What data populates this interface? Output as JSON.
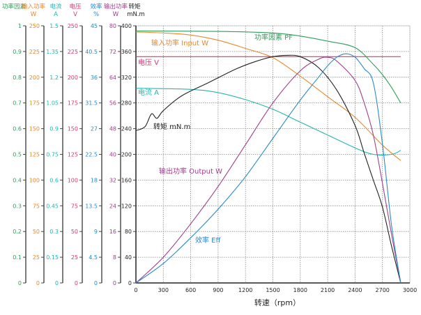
{
  "chart_data": {
    "type": "line",
    "xlabel": "转速（rpm）",
    "xlim": [
      0,
      3000
    ],
    "xticks": [
      "0",
      "300",
      "600",
      "900",
      "1200",
      "1500",
      "1800",
      "2100",
      "2400",
      "2700",
      "3000"
    ],
    "grid": true,
    "axes": [
      {
        "key": "pf",
        "title": "功率因素",
        "unit": "",
        "range": [
          0,
          1
        ],
        "color": "#2e9e5a",
        "ticks": [
          "0",
          "0.1",
          "0.2",
          "0.3",
          "0.4",
          "0.5",
          "0.6",
          "0.7",
          "0.8",
          "0.9",
          "1"
        ]
      },
      {
        "key": "input",
        "title": "输入功率",
        "unit": "W",
        "range": [
          0,
          250
        ],
        "color": "#e8892c",
        "ticks": [
          "0",
          "25",
          "50",
          "75",
          "100",
          "125",
          "150",
          "175",
          "200",
          "225",
          "250"
        ]
      },
      {
        "key": "current",
        "title": "电流",
        "unit": "A",
        "range": [
          0,
          1.5
        ],
        "color": "#26b5b0",
        "ticks": [
          "0",
          "0.15",
          "0.3",
          "0.45",
          "0.6",
          "0.75",
          "0.9",
          "1.05",
          "1.2",
          "1.35",
          "1.5"
        ]
      },
      {
        "key": "voltage",
        "title": "电压",
        "unit": "V",
        "range": [
          0,
          250
        ],
        "color": "#d43a6e",
        "ticks": [
          "0",
          "25",
          "50",
          "75",
          "100",
          "125",
          "150",
          "175",
          "200",
          "225",
          "250"
        ]
      },
      {
        "key": "eff",
        "title": "效率",
        "unit": "%",
        "range": [
          0,
          45
        ],
        "color": "#2a8ac8",
        "ticks": [
          "0",
          "4.5",
          "9",
          "13.5",
          "18",
          "22.5",
          "27",
          "31.5",
          "36",
          "40.5",
          "45"
        ]
      },
      {
        "key": "output",
        "title": "输出功率",
        "unit": "W",
        "range": [
          0,
          80
        ],
        "color": "#a0408a",
        "ticks": [
          "0",
          "8",
          "16",
          "24",
          "32",
          "40",
          "48",
          "56",
          "64",
          "72",
          "80"
        ]
      },
      {
        "key": "torque",
        "title": "转矩",
        "unit": "mN.m",
        "range": [
          0,
          400
        ],
        "color": "#222222",
        "ticks": [
          "0",
          "40",
          "80",
          "120",
          "160",
          "200",
          "240",
          "280",
          "320",
          "360",
          "400"
        ]
      }
    ],
    "series": [
      {
        "name": "功率因素 PF",
        "axis": "pf",
        "color": "#2e9e5a",
        "x": [
          0,
          900,
          1500,
          1800,
          2100,
          2400,
          2600,
          2700,
          2800,
          2900
        ],
        "y": [
          0.98,
          0.978,
          0.972,
          0.96,
          0.94,
          0.915,
          0.85,
          0.81,
          0.76,
          0.7
        ]
      },
      {
        "name": "输入功率 Input W",
        "axis": "input",
        "color": "#e8892c",
        "x": [
          0,
          300,
          600,
          900,
          1200,
          1500,
          1800,
          2100,
          2400,
          2700,
          2900
        ],
        "y": [
          244,
          243,
          241,
          236,
          228,
          219,
          201,
          181,
          161,
          134,
          119
        ]
      },
      {
        "name": "电压 V",
        "axis": "voltage",
        "color": "#d43a6e",
        "x": [
          0,
          2900
        ],
        "y": [
          220,
          220
        ]
      },
      {
        "name": "电流 A",
        "axis": "current",
        "color": "#26b5b0",
        "x": [
          0,
          600,
          900,
          1200,
          1500,
          1800,
          2100,
          2400,
          2600,
          2800,
          2900
        ],
        "y": [
          1.136,
          1.129,
          1.11,
          1.069,
          1.013,
          0.938,
          0.863,
          0.788,
          0.75,
          0.75,
          0.773
        ]
      },
      {
        "name": "转矩 mN.m",
        "axis": "torque",
        "color": "#222222",
        "x": [
          0,
          100,
          170,
          230,
          300,
          500,
          800,
          1100,
          1300,
          1500,
          1650,
          1800,
          2000,
          2200,
          2400,
          2500,
          2600,
          2700,
          2800,
          2900
        ],
        "y": [
          237,
          243,
          263,
          256,
          268,
          291,
          312,
          333,
          344,
          352,
          354,
          352,
          335,
          300,
          245,
          202,
          160,
          118,
          57,
          0
        ]
      },
      {
        "name": "输出功率 Output W",
        "axis": "output",
        "color": "#a0408a",
        "x": [
          0,
          300,
          600,
          900,
          1200,
          1500,
          1800,
          2000,
          2100,
          2200,
          2400,
          2500,
          2600,
          2700,
          2800,
          2900
        ],
        "y": [
          0,
          8,
          18.4,
          30,
          43,
          56,
          66,
          69.6,
          70.2,
          69,
          63,
          56,
          46,
          31,
          15,
          0
        ]
      },
      {
        "name": "效率 Eff",
        "axis": "eff",
        "color": "#2a8ac8",
        "x": [
          0,
          300,
          600,
          900,
          1200,
          1500,
          1800,
          2000,
          2100,
          2200,
          2300,
          2400,
          2500,
          2600,
          2700,
          2800,
          2900
        ],
        "y": [
          0,
          3.4,
          7.9,
          12.9,
          18.6,
          25.3,
          32,
          36,
          38,
          39.5,
          40.1,
          39.5,
          37.5,
          35,
          24.3,
          10,
          0
        ]
      }
    ]
  }
}
